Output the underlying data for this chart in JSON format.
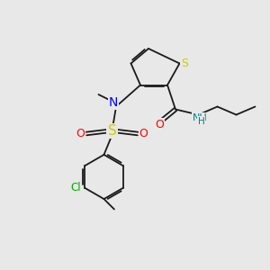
{
  "bg_color": "#e8e8e8",
  "colors": {
    "S": "#cccc00",
    "N": "#0000ff",
    "O": "#ff0000",
    "Cl": "#00aa00",
    "NH": "#008080",
    "bond": "#1a1a1a"
  },
  "lw": 1.3
}
